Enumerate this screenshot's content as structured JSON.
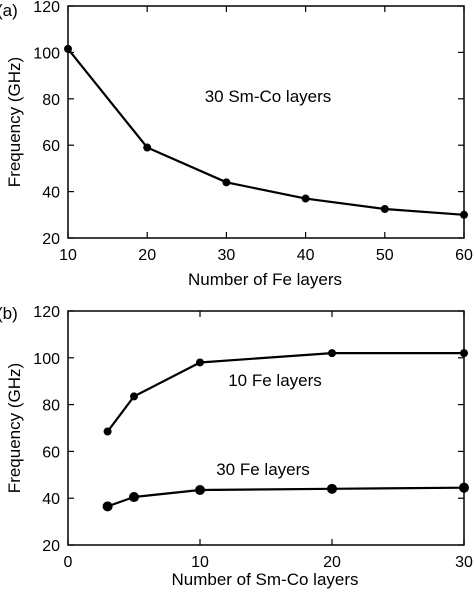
{
  "chart_data": [
    {
      "type": "line",
      "panel_label": "(a)",
      "xlabel": "Number of Fe layers",
      "ylabel": "Frequency (GHz)",
      "xlim": [
        10,
        60
      ],
      "ylim": [
        20,
        120
      ],
      "xticks": [
        "10",
        "20",
        "30",
        "40",
        "50",
        "60"
      ],
      "yticks": [
        "20",
        "40",
        "60",
        "80",
        "100",
        "120"
      ],
      "annotations": [
        {
          "text": "30 Sm-Co layers"
        }
      ],
      "grid": false,
      "series": [
        {
          "x": [
            10,
            20,
            30,
            40,
            50,
            60
          ],
          "y": [
            101.5,
            59,
            44,
            37,
            32.5,
            30
          ]
        }
      ]
    },
    {
      "type": "line",
      "panel_label": "(b)",
      "xlabel": "Number of Sm-Co layers",
      "ylabel": "Frequency (GHz)",
      "xlim": [
        0,
        30
      ],
      "ylim": [
        20,
        120
      ],
      "xticks": [
        "0",
        "10",
        "20",
        "30"
      ],
      "yticks": [
        "20",
        "40",
        "60",
        "80",
        "100",
        "120"
      ],
      "annotations": [
        {
          "text": "10 Fe layers"
        },
        {
          "text": "30 Fe layers"
        }
      ],
      "grid": false,
      "series": [
        {
          "x": [
            3,
            5,
            10,
            20,
            30
          ],
          "y": [
            68.5,
            83.5,
            98,
            102,
            102
          ]
        },
        {
          "x": [
            3,
            5,
            10,
            20,
            30
          ],
          "y": [
            36.5,
            40.5,
            43.5,
            44,
            44.5
          ]
        }
      ]
    }
  ]
}
